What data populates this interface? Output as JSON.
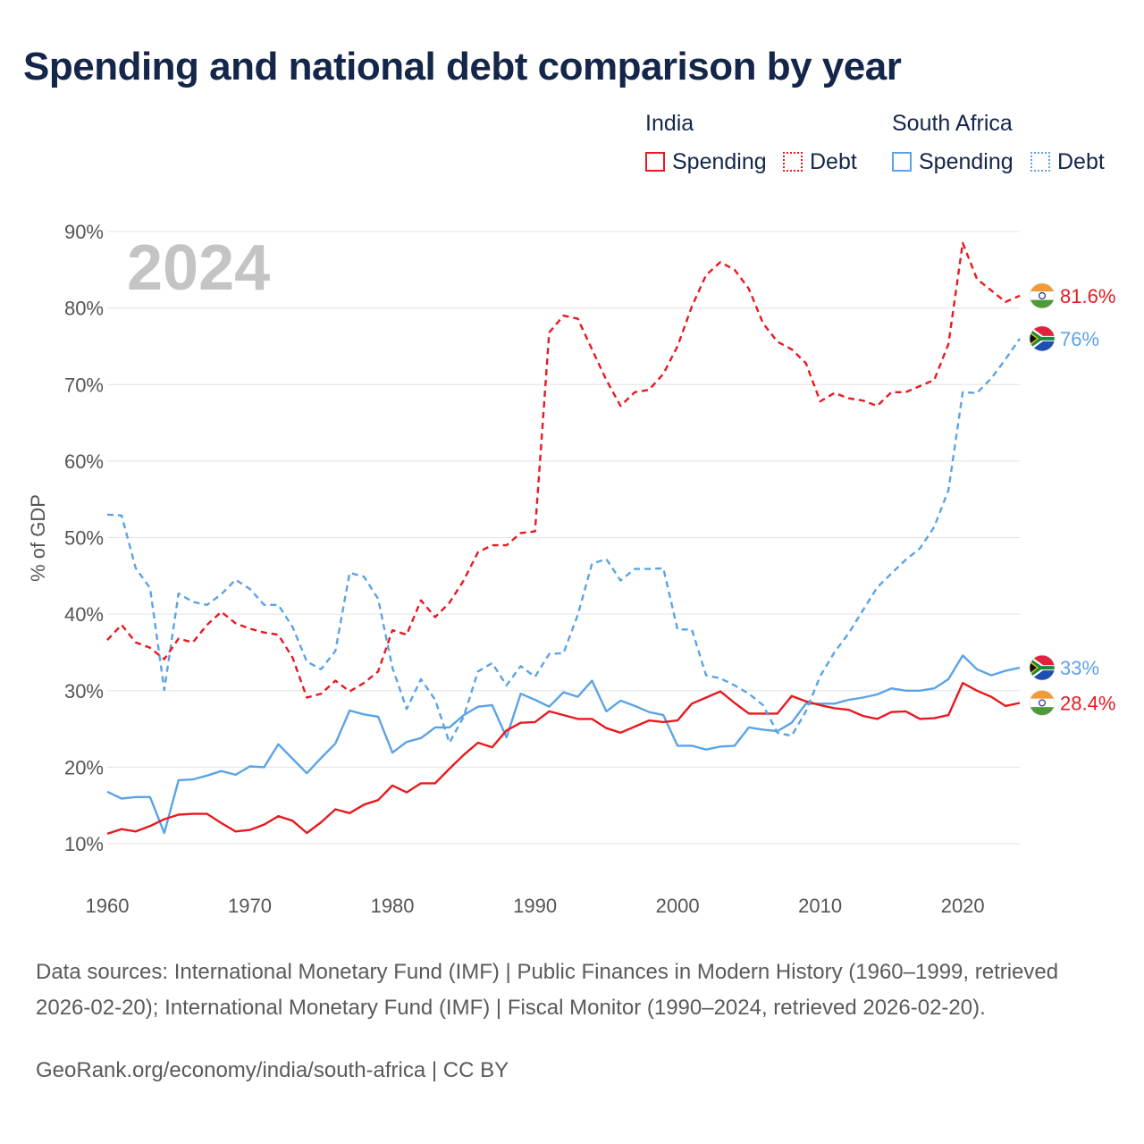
{
  "title": "Spending and national debt comparison by year",
  "legend": {
    "india": {
      "title": "India",
      "spending": "Spending",
      "debt": "Debt"
    },
    "south_africa": {
      "title": "South Africa",
      "spending": "Spending",
      "debt": "Debt"
    }
  },
  "colors": {
    "india": "#e8191f",
    "south_africa": "#5ba3e6",
    "grid": "#e3e3e3",
    "year_label": "#c4c4c4"
  },
  "year_label": "2024",
  "end_labels": {
    "india_debt": "81.6%",
    "south_africa_debt": "76%",
    "south_africa_spending": "33%",
    "india_spending": "28.4%"
  },
  "footer": {
    "sources": "Data sources: International Monetary Fund (IMF) | Public Finances in Modern History (1960–1999, retrieved 2026-02-20); International Monetary Fund (IMF) | Fiscal Monitor (1990–2024, retrieved 2026-02-20).",
    "link": "GeoRank.org/economy/india/south-africa | CC BY"
  },
  "chart_data": {
    "type": "line",
    "ylabel": "% of GDP",
    "xlabel": "",
    "xlim": [
      1960,
      2024
    ],
    "ylim": [
      10,
      90
    ],
    "x_ticks": [
      1960,
      1970,
      1980,
      1990,
      2000,
      2010,
      2020
    ],
    "y_ticks": [
      10,
      20,
      30,
      40,
      50,
      60,
      70,
      80,
      90
    ],
    "y_tick_labels": [
      "10%",
      "20%",
      "30%",
      "40%",
      "50%",
      "60%",
      "70%",
      "80%",
      "90%"
    ],
    "x": [
      1960,
      1961,
      1962,
      1963,
      1964,
      1965,
      1966,
      1967,
      1968,
      1969,
      1970,
      1971,
      1972,
      1973,
      1974,
      1975,
      1976,
      1977,
      1978,
      1979,
      1980,
      1981,
      1982,
      1983,
      1984,
      1985,
      1986,
      1987,
      1988,
      1989,
      1990,
      1991,
      1992,
      1993,
      1994,
      1995,
      1996,
      1997,
      1998,
      1999,
      2000,
      2001,
      2002,
      2003,
      2004,
      2005,
      2006,
      2007,
      2008,
      2009,
      2010,
      2011,
      2012,
      2013,
      2014,
      2015,
      2016,
      2017,
      2018,
      2019,
      2020,
      2021,
      2022,
      2023,
      2024
    ],
    "series": [
      {
        "name": "India Spending",
        "country": "India",
        "measure": "Spending",
        "style": "solid",
        "values": [
          11.3,
          11.9,
          11.6,
          12.3,
          13.2,
          13.8,
          13.9,
          13.9,
          12.7,
          11.6,
          11.8,
          12.5,
          13.6,
          13.0,
          11.4,
          12.8,
          14.5,
          14.0,
          15.1,
          15.7,
          17.6,
          16.7,
          17.9,
          17.9,
          19.8,
          21.6,
          23.2,
          22.6,
          24.8,
          25.8,
          25.9,
          27.3,
          26.8,
          26.3,
          26.3,
          25.1,
          24.5,
          25.3,
          26.1,
          25.9,
          26.1,
          28.3,
          29.1,
          29.9,
          28.4,
          27.0,
          27.0,
          27.0,
          29.3,
          28.6,
          28.1,
          27.7,
          27.5,
          26.7,
          26.3,
          27.2,
          27.3,
          26.3,
          26.4,
          26.8,
          31.0,
          30.0,
          29.2,
          28.0,
          28.4
        ]
      },
      {
        "name": "India Debt",
        "country": "India",
        "measure": "Debt",
        "style": "dashed",
        "values": [
          36.6,
          38.6,
          36.3,
          35.6,
          34.1,
          36.8,
          36.3,
          38.6,
          40.3,
          38.8,
          38.1,
          37.6,
          37.3,
          34.3,
          29.1,
          29.6,
          31.3,
          29.9,
          31.0,
          32.5,
          37.9,
          37.3,
          41.8,
          39.6,
          41.5,
          44.4,
          48.1,
          49.0,
          49.0,
          50.6,
          50.8,
          76.8,
          79.0,
          78.6,
          74.6,
          70.6,
          67.2,
          69.0,
          69.3,
          71.4,
          75.0,
          80.2,
          84.3,
          86.0,
          85.0,
          82.5,
          78.0,
          75.6,
          74.6,
          72.8,
          67.8,
          68.9,
          68.2,
          67.9,
          67.2,
          69.0,
          69.0,
          69.8,
          70.6,
          75.3,
          88.5,
          83.8,
          82.3,
          80.8,
          81.6
        ]
      },
      {
        "name": "South Africa Spending",
        "country": "South Africa",
        "measure": "Spending",
        "style": "solid",
        "values": [
          16.8,
          15.9,
          16.1,
          16.1,
          11.4,
          18.3,
          18.4,
          18.9,
          19.5,
          19.0,
          20.1,
          20.0,
          23.0,
          21.1,
          19.2,
          21.2,
          23.1,
          27.4,
          26.9,
          26.6,
          21.9,
          23.3,
          23.8,
          25.2,
          25.2,
          26.8,
          27.9,
          28.1,
          23.9,
          29.6,
          28.8,
          27.9,
          29.8,
          29.2,
          31.3,
          27.3,
          28.7,
          28.0,
          27.2,
          26.8,
          22.8,
          22.8,
          22.3,
          22.7,
          22.8,
          25.2,
          24.9,
          24.7,
          25.8,
          28.3,
          28.3,
          28.3,
          28.8,
          29.1,
          29.5,
          30.3,
          30.0,
          30.0,
          30.3,
          31.5,
          34.6,
          32.8,
          32.0,
          32.6,
          33.0
        ]
      },
      {
        "name": "South Africa Debt",
        "country": "South Africa",
        "measure": "Debt",
        "style": "dashed",
        "values": [
          53.0,
          52.9,
          46.0,
          43.4,
          30.1,
          42.7,
          41.6,
          41.2,
          42.6,
          44.5,
          43.3,
          41.2,
          41.2,
          38.3,
          33.8,
          32.8,
          35.2,
          45.4,
          44.9,
          42.0,
          33.0,
          27.6,
          31.5,
          28.8,
          23.2,
          26.6,
          32.5,
          33.6,
          30.7,
          33.2,
          31.8,
          34.8,
          34.9,
          39.9,
          46.6,
          47.2,
          44.4,
          45.9,
          45.9,
          46.0,
          38.0,
          38.0,
          32.0,
          31.6,
          30.7,
          29.6,
          28.1,
          24.5,
          24.1,
          27.3,
          31.9,
          35.0,
          37.5,
          40.5,
          43.5,
          45.3,
          47.1,
          48.6,
          51.4,
          56.2,
          69.0,
          68.9,
          70.8,
          73.3,
          76.0
        ]
      }
    ]
  }
}
